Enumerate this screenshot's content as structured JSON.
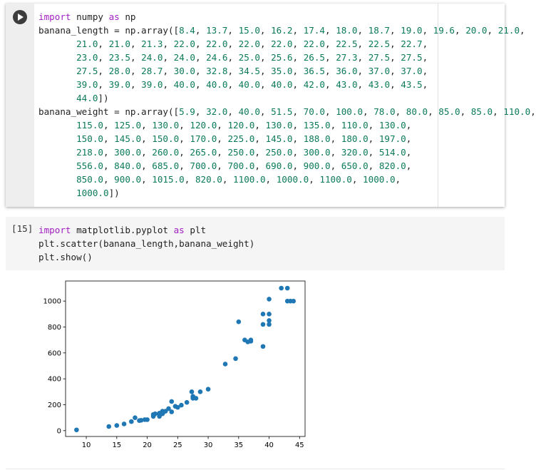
{
  "cells": [
    {
      "code": [
        "import numpy as np",
        "banana_length = np.array([8.4, 13.7, 15.0, 16.2, 17.4, 18.0, 18.7, 19.0, 19.6, 20.0, 21.0,",
        "       21.0, 21.0, 21.3, 22.0, 22.0, 22.0, 22.0, 22.0, 22.5, 22.5, 22.7,",
        "       23.0, 23.5, 24.0, 24.0, 24.6, 25.0, 25.6, 26.5, 27.3, 27.5, 27.5,",
        "       27.5, 28.0, 28.7, 30.0, 32.8, 34.5, 35.0, 36.5, 36.0, 37.0, 37.0,",
        "       39.0, 39.0, 39.0, 40.0, 40.0, 40.0, 40.0, 42.0, 43.0, 43.0, 43.5,",
        "       44.0])",
        "banana_weight = np.array([5.9, 32.0, 40.0, 51.5, 70.0, 100.0, 78.0, 80.0, 85.0, 85.0, 110.0,",
        "       115.0, 125.0, 130.0, 120.0, 120.0, 130.0, 135.0, 110.0, 130.0,",
        "       150.0, 145.0, 150.0, 170.0, 225.0, 145.0, 188.0, 180.0, 197.0,",
        "       218.0, 300.0, 260.0, 265.0, 250.0, 250.0, 300.0, 320.0, 514.0,",
        "       556.0, 840.0, 685.0, 700.0, 700.0, 690.0, 900.0, 650.0, 820.0,",
        "       850.0, 900.0, 1015.0, 820.0, 1100.0, 1000.0, 1100.0, 1000.0,",
        "       1000.0])"
      ]
    },
    {
      "prompt": "[15]",
      "code": [
        "import matplotlib.pyplot as plt",
        "plt.scatter(banana_length,banana_weight)",
        "plt.show()"
      ]
    }
  ],
  "chart_data": {
    "type": "scatter",
    "x": [
      8.4,
      13.7,
      15.0,
      16.2,
      17.4,
      18.0,
      18.7,
      19.0,
      19.6,
      20.0,
      21.0,
      21.0,
      21.0,
      21.3,
      22.0,
      22.0,
      22.0,
      22.0,
      22.0,
      22.5,
      22.5,
      22.7,
      23.0,
      23.5,
      24.0,
      24.0,
      24.6,
      25.0,
      25.6,
      26.5,
      27.3,
      27.5,
      27.5,
      27.5,
      28.0,
      28.7,
      30.0,
      32.8,
      34.5,
      35.0,
      36.5,
      36.0,
      37.0,
      37.0,
      39.0,
      39.0,
      39.0,
      40.0,
      40.0,
      40.0,
      40.0,
      42.0,
      43.0,
      43.0,
      43.5,
      44.0
    ],
    "values": [
      5.9,
      32.0,
      40.0,
      51.5,
      70.0,
      100.0,
      78.0,
      80.0,
      85.0,
      85.0,
      110.0,
      115.0,
      125.0,
      130.0,
      120.0,
      120.0,
      130.0,
      135.0,
      110.0,
      130.0,
      150.0,
      145.0,
      150.0,
      170.0,
      225.0,
      145.0,
      188.0,
      180.0,
      197.0,
      218.0,
      300.0,
      260.0,
      265.0,
      250.0,
      250.0,
      300.0,
      320.0,
      514.0,
      556.0,
      840.0,
      685.0,
      700.0,
      700.0,
      690.0,
      900.0,
      650.0,
      820.0,
      850.0,
      900.0,
      1015.0,
      820.0,
      1100.0,
      1000.0,
      1100.0,
      1000.0,
      1000.0
    ],
    "color": "#1f77b4",
    "xlim": [
      6.6,
      45.9
    ],
    "ylim": [
      -45,
      1155
    ],
    "xticks": [
      10,
      15,
      20,
      25,
      30,
      35,
      40,
      45
    ],
    "yticks": [
      0,
      200,
      400,
      600,
      800,
      1000
    ],
    "grid": false
  }
}
